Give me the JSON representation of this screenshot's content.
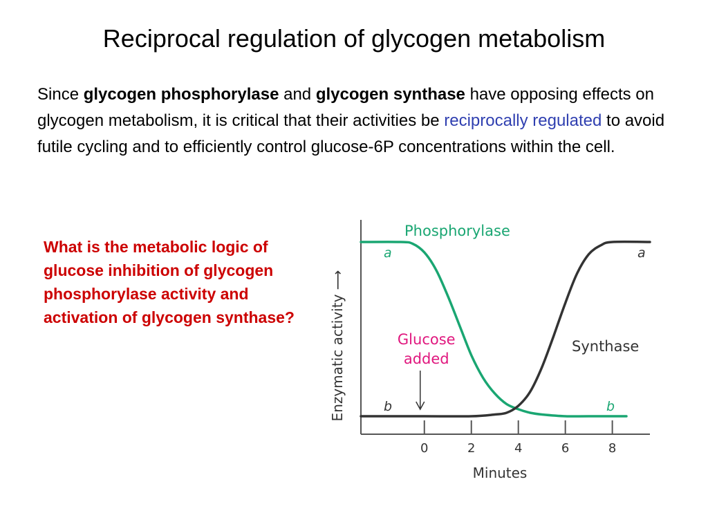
{
  "slide": {
    "title": "Reciprocal regulation of glycogen metabolism",
    "intro": {
      "t1": "Since ",
      "b1": "glycogen phosphorylase",
      "t2": " and ",
      "b2": "glycogen synthase",
      "t3": " have opposing effects on glycogen metabolism, it is critical that their activities be ",
      "link": "reciprocally regulated",
      "t4": " to avoid futile cycling and to efficiently control glucose-6P concentrations within the cell."
    },
    "question": "What is the metabolic logic of glucose inhibition of glycogen phosphorylase activity and activation of glycogen synthase?"
  },
  "chart_data": {
    "type": "line",
    "xlabel": "Minutes",
    "ylabel": "Enzymatic activity ⟶",
    "x_ticks": [
      0,
      2,
      4,
      6,
      8
    ],
    "xlim": [
      -2.7,
      9.6
    ],
    "ylevels": {
      "b": 0,
      "a": 1
    },
    "grid": false,
    "series": [
      {
        "name": "Phosphorylase",
        "color": "#1aa672",
        "start_label": "a",
        "end_label": "b",
        "x": [
          -2.7,
          -1.0,
          -0.5,
          0,
          0.5,
          1.0,
          1.5,
          2.0,
          2.5,
          3.0,
          3.5,
          4.0,
          4.5,
          5.0,
          6.0,
          7.0,
          8.6
        ],
        "y": [
          1,
          1,
          0.99,
          0.94,
          0.84,
          0.69,
          0.52,
          0.35,
          0.22,
          0.13,
          0.07,
          0.04,
          0.02,
          0.01,
          0,
          0,
          0
        ]
      },
      {
        "name": "Synthase",
        "color": "#333333",
        "start_label": "b",
        "end_label": "a",
        "x": [
          -2.7,
          0,
          2.0,
          3.0,
          3.5,
          4.0,
          4.5,
          5.0,
          5.5,
          6.0,
          6.5,
          7.0,
          7.5,
          8.0,
          9.6
        ],
        "y": [
          0,
          0,
          0,
          0.01,
          0.02,
          0.06,
          0.14,
          0.28,
          0.46,
          0.65,
          0.82,
          0.93,
          0.98,
          1,
          1
        ]
      }
    ],
    "annotations": [
      {
        "text_line1": "Glucose",
        "text_line2": "added",
        "color": "#e0177e",
        "x": 0
      }
    ]
  }
}
